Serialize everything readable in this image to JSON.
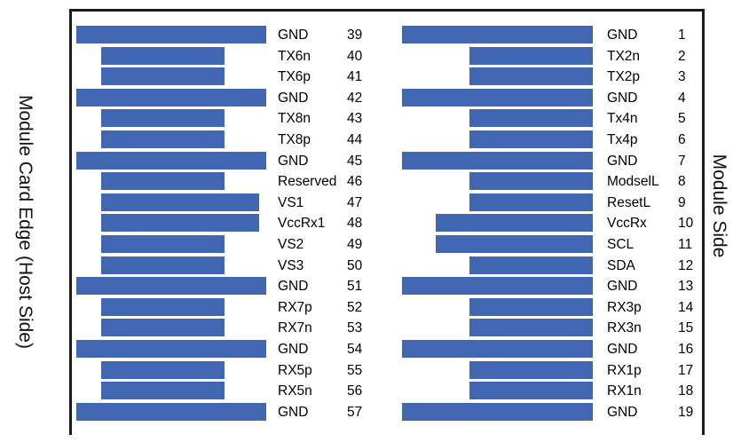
{
  "labels": {
    "host_side": "Module Card Edge (Host Side)",
    "module_side": "Module Side"
  },
  "colors": {
    "pad": "#4267b2",
    "frame": "#1a1a1a"
  },
  "left_pins": [
    {
      "name": "GND",
      "num": "39",
      "type": "gnd"
    },
    {
      "name": "TX6n",
      "num": "40",
      "type": "signal"
    },
    {
      "name": "TX6p",
      "num": "41",
      "type": "signal"
    },
    {
      "name": "GND",
      "num": "42",
      "type": "gnd"
    },
    {
      "name": "TX8n",
      "num": "43",
      "type": "signal"
    },
    {
      "name": "TX8p",
      "num": "44",
      "type": "signal"
    },
    {
      "name": "GND",
      "num": "45",
      "type": "gnd"
    },
    {
      "name": "Reserved",
      "num": "46",
      "type": "signal"
    },
    {
      "name": "VS1",
      "num": "47",
      "type": "power"
    },
    {
      "name": "VccRx1",
      "num": "48",
      "type": "power"
    },
    {
      "name": "VS2",
      "num": "49",
      "type": "signal"
    },
    {
      "name": "VS3",
      "num": "50",
      "type": "signal"
    },
    {
      "name": "GND",
      "num": "51",
      "type": "gnd"
    },
    {
      "name": "RX7p",
      "num": "52",
      "type": "signal"
    },
    {
      "name": "RX7n",
      "num": "53",
      "type": "signal"
    },
    {
      "name": "GND",
      "num": "54",
      "type": "gnd"
    },
    {
      "name": "RX5p",
      "num": "55",
      "type": "signal"
    },
    {
      "name": "RX5n",
      "num": "56",
      "type": "signal"
    },
    {
      "name": "GND",
      "num": "57",
      "type": "gnd"
    }
  ],
  "right_pins": [
    {
      "name": "GND",
      "num": "1",
      "type": "gnd"
    },
    {
      "name": "TX2n",
      "num": "2",
      "type": "signal"
    },
    {
      "name": "TX2p",
      "num": "3",
      "type": "signal"
    },
    {
      "name": "GND",
      "num": "4",
      "type": "gnd"
    },
    {
      "name": "Tx4n",
      "num": "5",
      "type": "signal"
    },
    {
      "name": "Tx4p",
      "num": "6",
      "type": "signal"
    },
    {
      "name": "GND",
      "num": "7",
      "type": "gnd"
    },
    {
      "name": "ModselL",
      "num": "8",
      "type": "signal"
    },
    {
      "name": "ResetL",
      "num": "9",
      "type": "signal"
    },
    {
      "name": "VccRx",
      "num": "10",
      "type": "power"
    },
    {
      "name": "SCL",
      "num": "11",
      "type": "power"
    },
    {
      "name": "SDA",
      "num": "12",
      "type": "signal"
    },
    {
      "name": "GND",
      "num": "13",
      "type": "gnd"
    },
    {
      "name": "RX3p",
      "num": "14",
      "type": "signal"
    },
    {
      "name": "RX3n",
      "num": "15",
      "type": "signal"
    },
    {
      "name": "GND",
      "num": "16",
      "type": "gnd"
    },
    {
      "name": "RX1p",
      "num": "17",
      "type": "signal"
    },
    {
      "name": "RX1n",
      "num": "18",
      "type": "signal"
    },
    {
      "name": "GND",
      "num": "19",
      "type": "gnd"
    }
  ]
}
